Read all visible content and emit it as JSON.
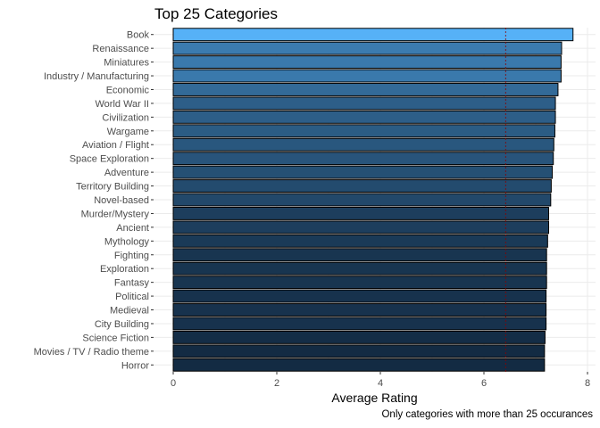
{
  "chart_data": {
    "type": "bar",
    "orientation": "horizontal",
    "title": "Top 25 Categories",
    "xlabel": "Average Rating",
    "ylabel": "",
    "caption": "Only categories with more than 25 occurances",
    "xlim": [
      0,
      8
    ],
    "x_ticks": [
      0,
      2,
      4,
      6,
      8
    ],
    "grid": true,
    "legend": "none",
    "reference_line": 6.42,
    "categories": [
      "Book",
      "Renaissance",
      "Miniatures",
      "Industry / Manufacturing",
      "Economic",
      "World War II",
      "Civilization",
      "Wargame",
      "Aviation / Flight",
      "Space Exploration",
      "Adventure",
      "Territory Building",
      "Novel-based",
      "Murder/Mystery",
      "Ancient",
      "Mythology",
      "Fighting",
      "Exploration",
      "Fantasy",
      "Political",
      "Medieval",
      "City Building",
      "Science Fiction",
      "Movies / TV / Radio theme",
      "Horror"
    ],
    "values": [
      7.72,
      7.5,
      7.49,
      7.49,
      7.43,
      7.38,
      7.38,
      7.37,
      7.35,
      7.34,
      7.32,
      7.3,
      7.29,
      7.25,
      7.25,
      7.23,
      7.21,
      7.21,
      7.21,
      7.2,
      7.2,
      7.2,
      7.18,
      7.17,
      7.17
    ],
    "colors": {
      "fill_low": "#132B43",
      "fill_high": "#56B1F7",
      "bar_outline": "#000000",
      "reference_line": "#8B0000",
      "grid": "#EBEBEB",
      "axis_text": "#4D4D4D"
    }
  }
}
